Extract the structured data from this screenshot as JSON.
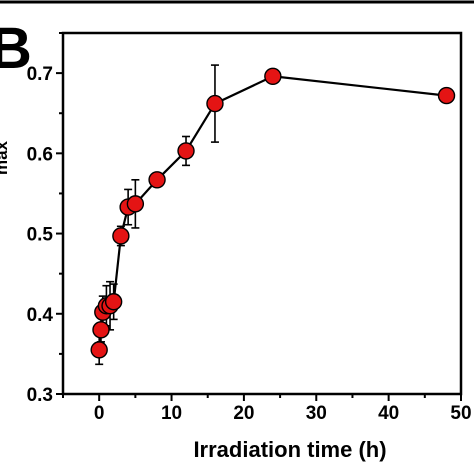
{
  "panel_label": "B",
  "chart_data": {
    "type": "scatter",
    "xlabel": "Irradiation time (h)",
    "ylabel": "max",
    "xlim": [
      -5,
      50
    ],
    "ylim": [
      0.3,
      0.75
    ],
    "x_ticks": [
      0,
      10,
      20,
      30,
      40,
      50
    ],
    "x_tick_labels": [
      "0",
      "10",
      "20",
      "30",
      "40",
      "50"
    ],
    "y_ticks": [
      0.3,
      0.4,
      0.5,
      0.6,
      0.7
    ],
    "y_tick_labels": [
      "0.3",
      "0.4",
      "0.5",
      "0.6",
      "0.7"
    ],
    "grid": false,
    "line": true,
    "marker_color": "#e41414",
    "marker_edge": "#000000",
    "series": [
      {
        "x": [
          0,
          0.25,
          0.5,
          1,
          1.5,
          2,
          3,
          4,
          5,
          8,
          12,
          16,
          24,
          48
        ],
        "y": [
          0.355,
          0.38,
          0.402,
          0.41,
          0.41,
          0.415,
          0.497,
          0.533,
          0.537,
          0.567,
          0.603,
          0.662,
          0.696,
          0.672
        ],
        "err": [
          0.018,
          0.015,
          0.02,
          0.025,
          0.03,
          0.022,
          0.012,
          0.022,
          0.03,
          0.008,
          0.018,
          0.048,
          0.008,
          0.007
        ]
      }
    ]
  }
}
